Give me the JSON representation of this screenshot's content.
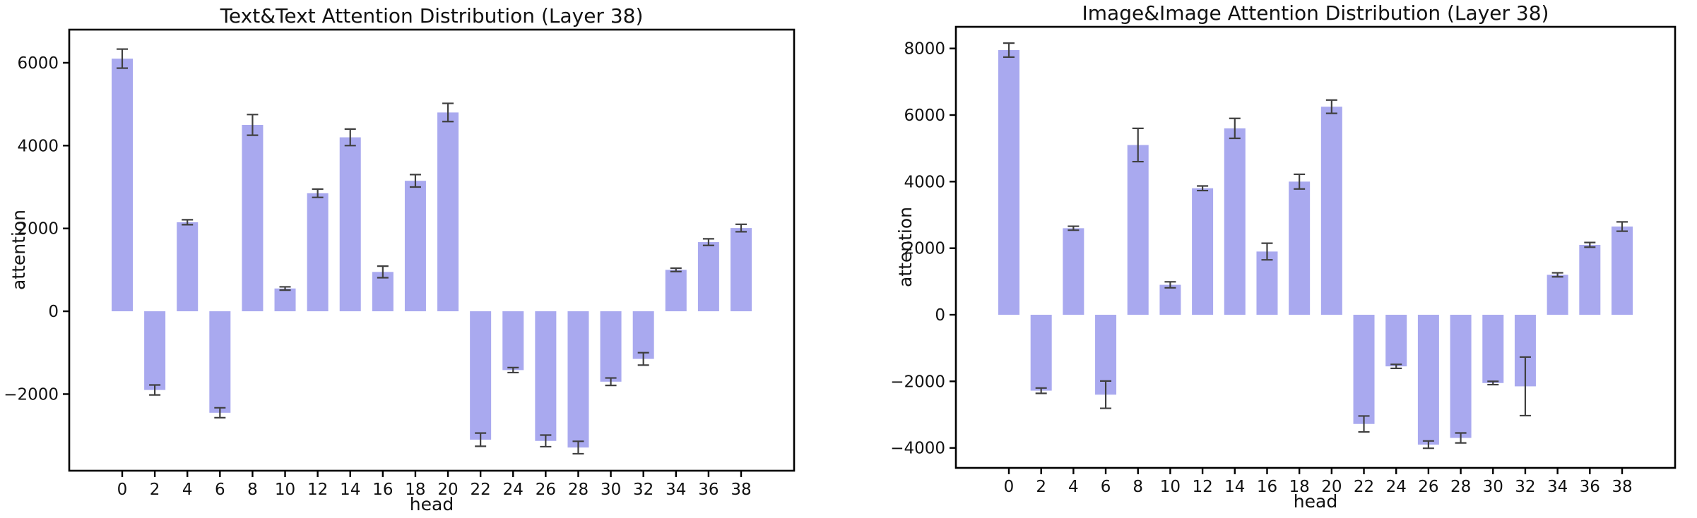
{
  "figure": {
    "background": "#ffffff"
  },
  "chart_data": [
    {
      "type": "bar",
      "title": "Text&Text Attention Distribution (Layer 38)",
      "xlabel": "head",
      "ylabel": "attention",
      "categories": [
        0,
        2,
        4,
        6,
        8,
        10,
        12,
        14,
        16,
        18,
        20,
        22,
        24,
        26,
        28,
        30,
        32,
        34,
        36,
        38
      ],
      "values": [
        6100,
        -1900,
        2150,
        -2450,
        4500,
        550,
        2850,
        4200,
        950,
        3150,
        4800,
        -3100,
        -1420,
        -3130,
        -3290,
        -1700,
        -1150,
        1000,
        1670,
        2010
      ],
      "errors": [
        230,
        120,
        60,
        120,
        250,
        40,
        100,
        200,
        140,
        150,
        220,
        160,
        60,
        140,
        150,
        90,
        150,
        40,
        80,
        90
      ],
      "yticks": [
        6000,
        4000,
        2000,
        0,
        -2000
      ],
      "ylim": [
        -3850,
        6800
      ],
      "grid": false,
      "legend_position": "none",
      "bar_color": "#a9a9ef",
      "error_color": "#404040"
    },
    {
      "type": "bar",
      "title": "Image&Image Attention Distribution (Layer 38)",
      "xlabel": "head",
      "ylabel": "attention",
      "categories": [
        0,
        2,
        4,
        6,
        8,
        10,
        12,
        14,
        16,
        18,
        20,
        22,
        24,
        26,
        28,
        30,
        32,
        34,
        36,
        38
      ],
      "values": [
        7950,
        -2280,
        2600,
        -2400,
        5100,
        900,
        3800,
        5600,
        1900,
        4000,
        6250,
        -3280,
        -1550,
        -3900,
        -3700,
        -2050,
        -2150,
        1200,
        2100,
        2650
      ],
      "errors": [
        210,
        80,
        60,
        410,
        500,
        90,
        70,
        300,
        250,
        220,
        200,
        240,
        60,
        110,
        150,
        50,
        880,
        60,
        70,
        140
      ],
      "yticks": [
        8000,
        6000,
        4000,
        2000,
        0,
        -2000,
        -4000
      ],
      "ylim": [
        -4600,
        8650
      ],
      "grid": false,
      "legend_position": "none",
      "bar_color": "#a9a9ef",
      "error_color": "#404040"
    }
  ]
}
